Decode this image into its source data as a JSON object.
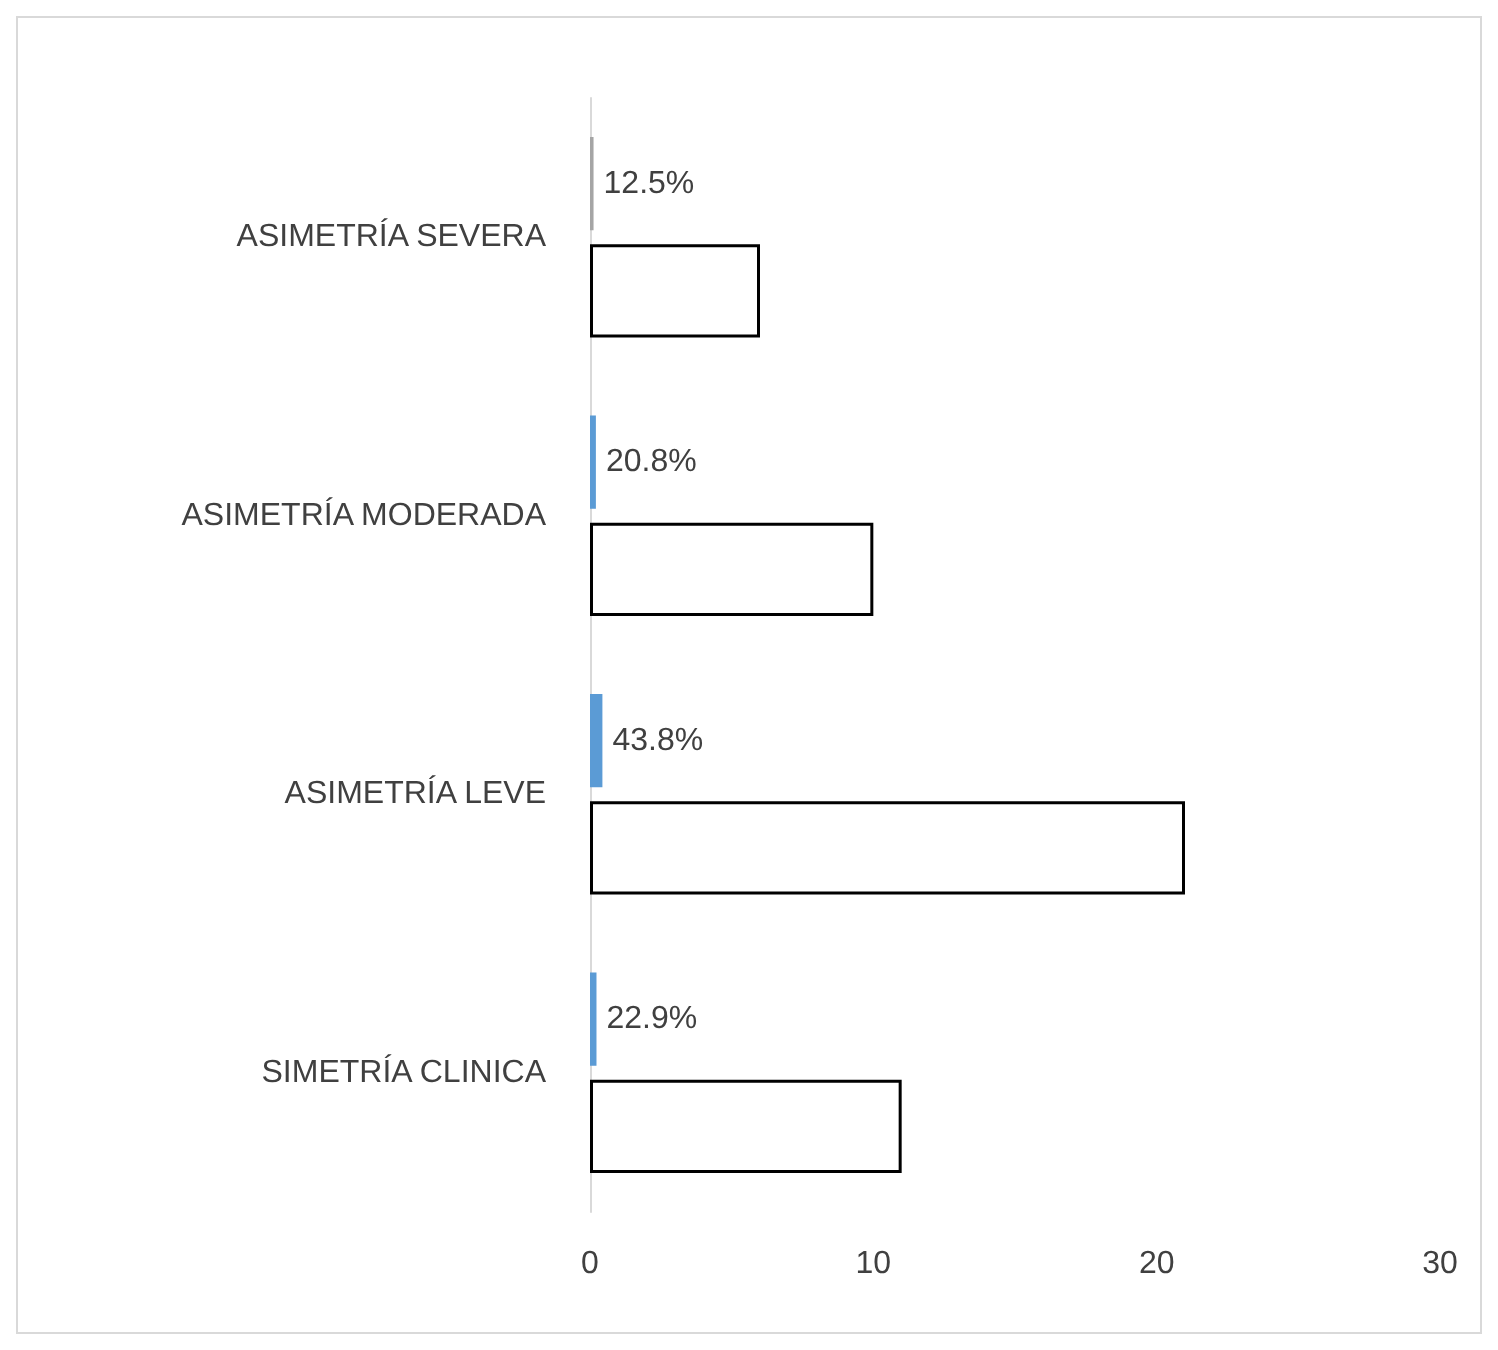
{
  "chart_data": {
    "type": "bar",
    "orientation": "horizontal",
    "categories": [
      "ASIMETRÍA SEVERA",
      "ASIMETRÍA MODERADA",
      "ASIMETRÍA LEVE",
      "SIMETRÍA CLINICA"
    ],
    "series": [
      {
        "colors": [
          "#a5a5a5",
          "#5b9bd5",
          "#5b9bd5",
          "#5b9bd5"
        ],
        "values": [
          0.125,
          0.208,
          0.438,
          0.229
        ],
        "value_labels": [
          "12.5%",
          "20.8%",
          "43.8%",
          "22.9%"
        ]
      },
      {
        "color": "#ffffff",
        "values": [
          6,
          10,
          21,
          11
        ]
      }
    ],
    "xlim": [
      0,
      30
    ],
    "xticks": [
      0,
      10,
      20,
      30
    ]
  }
}
